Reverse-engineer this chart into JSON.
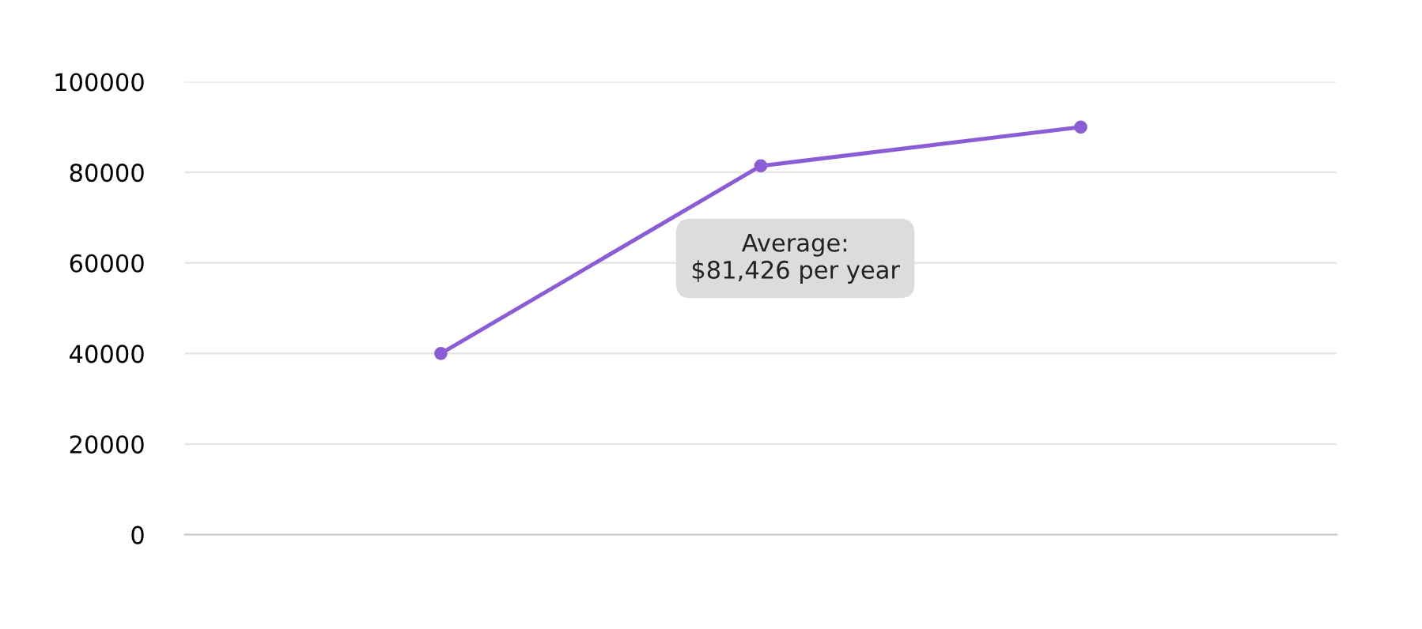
{
  "chart_data": {
    "type": "line",
    "categories": [
      null,
      null,
      null
    ],
    "series": [
      {
        "color": "#8a5cd6",
        "values": [
          40000,
          81426,
          90000
        ]
      }
    ],
    "ylim": [
      0,
      100000
    ],
    "yticks": [
      0,
      20000,
      40000,
      60000,
      80000,
      100000
    ],
    "grid": "y",
    "marker": "circle",
    "line_style": "solid",
    "tick_labels": "y",
    "legend": false,
    "annotations": [
      "Average:\n$81,426 per year"
    ]
  }
}
